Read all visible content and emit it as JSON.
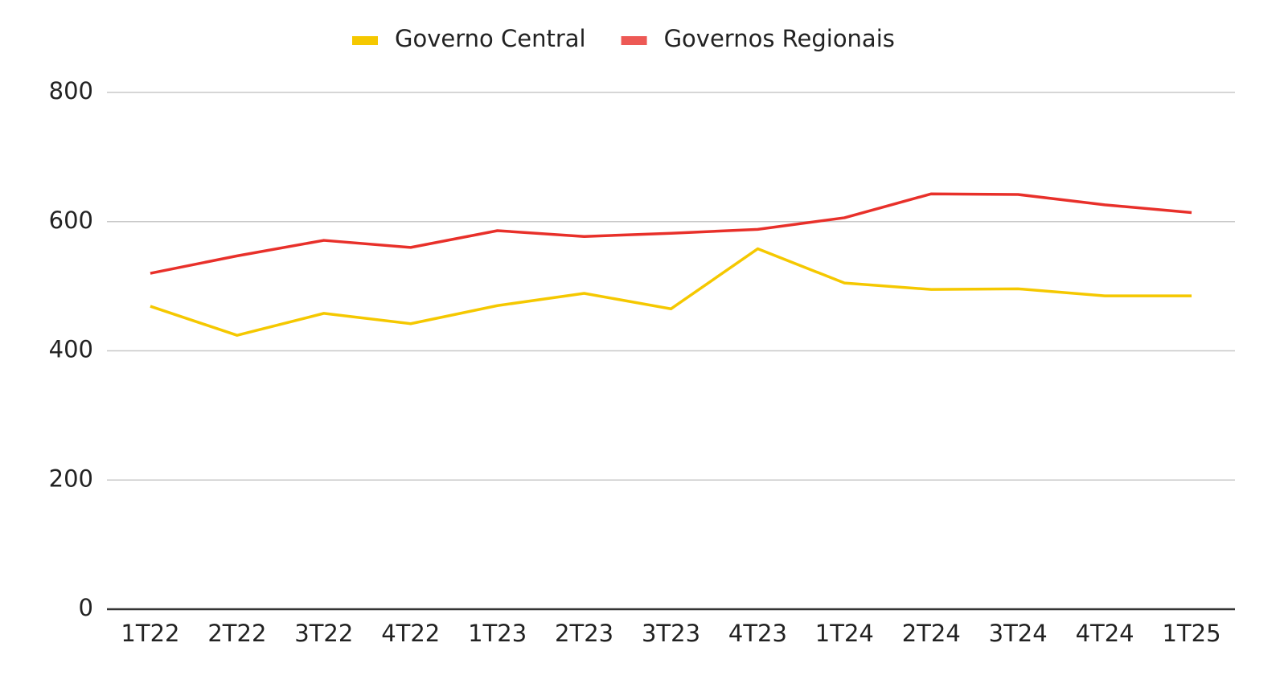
{
  "chart_data": {
    "type": "line",
    "categories": [
      "1T22",
      "2T22",
      "3T22",
      "4T22",
      "1T23",
      "2T23",
      "3T23",
      "4T23",
      "1T24",
      "2T24",
      "3T24",
      "4T24",
      "1T25"
    ],
    "series": [
      {
        "name": "Governo Central",
        "color": "#f5c800",
        "values": [
          469,
          424,
          458,
          442,
          470,
          489,
          465,
          558,
          505,
          495,
          496,
          485,
          485
        ]
      },
      {
        "name": "Governos Regionais",
        "color": "#e8302a",
        "values": [
          520,
          547,
          571,
          560,
          586,
          577,
          582,
          588,
          606,
          643,
          642,
          626,
          614
        ]
      }
    ],
    "ylim": [
      0,
      800
    ],
    "yticks": [
      0,
      200,
      400,
      600,
      800
    ],
    "grid": true,
    "legend": "top"
  }
}
